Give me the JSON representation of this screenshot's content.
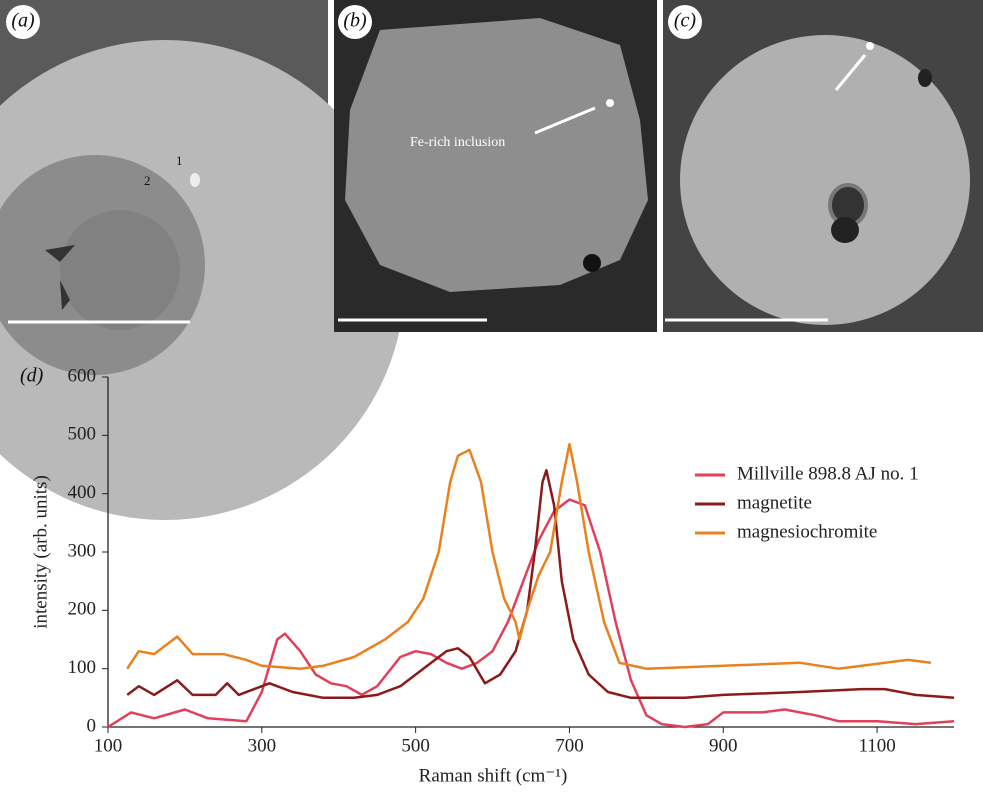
{
  "panels": [
    {
      "label": "(a)",
      "annotations": [
        "1",
        "2"
      ]
    },
    {
      "label": "(b)",
      "annotations": [
        "Fe-rich inclusion"
      ]
    },
    {
      "label": "(c)"
    }
  ],
  "chart_data": {
    "type": "line",
    "label": "(d)",
    "x_label": "Raman shift (cm⁻¹)",
    "y_label": "intensity (arb. units)",
    "xlim": [
      100,
      1200
    ],
    "xticks": [
      100,
      300,
      500,
      700,
      900,
      1100
    ],
    "ylim": [
      0,
      600
    ],
    "yticks": [
      0,
      100,
      200,
      300,
      400,
      500,
      600
    ],
    "legend": "right",
    "series": [
      {
        "name": "Millville 898.8 AJ no. 1",
        "color": "#e0405a",
        "x": [
          100,
          130,
          160,
          200,
          230,
          280,
          300,
          320,
          330,
          350,
          370,
          390,
          410,
          430,
          450,
          480,
          500,
          520,
          540,
          560,
          580,
          600,
          620,
          640,
          660,
          680,
          700,
          720,
          740,
          760,
          780,
          800,
          820,
          850,
          880,
          900,
          950,
          980,
          1020,
          1050,
          1100,
          1150,
          1200
        ],
        "values": [
          0,
          25,
          15,
          30,
          15,
          10,
          60,
          150,
          160,
          130,
          90,
          75,
          70,
          55,
          70,
          120,
          130,
          125,
          110,
          100,
          110,
          130,
          180,
          250,
          320,
          370,
          390,
          380,
          300,
          180,
          80,
          20,
          5,
          0,
          5,
          25,
          25,
          30,
          20,
          10,
          10,
          5,
          10
        ]
      },
      {
        "name": "magnetite",
        "color": "#8b1a1a",
        "x": [
          125,
          140,
          160,
          190,
          210,
          240,
          255,
          270,
          300,
          310,
          340,
          380,
          420,
          450,
          480,
          510,
          540,
          555,
          570,
          590,
          610,
          630,
          645,
          655,
          665,
          670,
          680,
          690,
          705,
          725,
          750,
          780,
          850,
          900,
          1000,
          1080,
          1110,
          1150,
          1200
        ],
        "values": [
          55,
          70,
          55,
          80,
          55,
          55,
          75,
          55,
          70,
          75,
          60,
          50,
          50,
          55,
          70,
          100,
          130,
          135,
          120,
          75,
          90,
          130,
          200,
          300,
          420,
          440,
          380,
          250,
          150,
          90,
          60,
          50,
          50,
          55,
          60,
          65,
          65,
          55,
          50
        ]
      },
      {
        "name": "magnesiochromite",
        "color": "#e8821e",
        "x": [
          125,
          140,
          160,
          190,
          210,
          250,
          280,
          300,
          350,
          380,
          420,
          460,
          490,
          510,
          530,
          545,
          555,
          570,
          585,
          600,
          615,
          630,
          635,
          645,
          660,
          675,
          690,
          700,
          710,
          725,
          745,
          765,
          800,
          900,
          1000,
          1050,
          1140,
          1170
        ],
        "values": [
          100,
          130,
          125,
          155,
          125,
          125,
          115,
          105,
          100,
          105,
          120,
          150,
          180,
          220,
          300,
          420,
          465,
          475,
          420,
          300,
          220,
          180,
          150,
          200,
          260,
          300,
          420,
          485,
          420,
          300,
          180,
          110,
          100,
          105,
          110,
          100,
          115,
          110
        ]
      }
    ]
  }
}
